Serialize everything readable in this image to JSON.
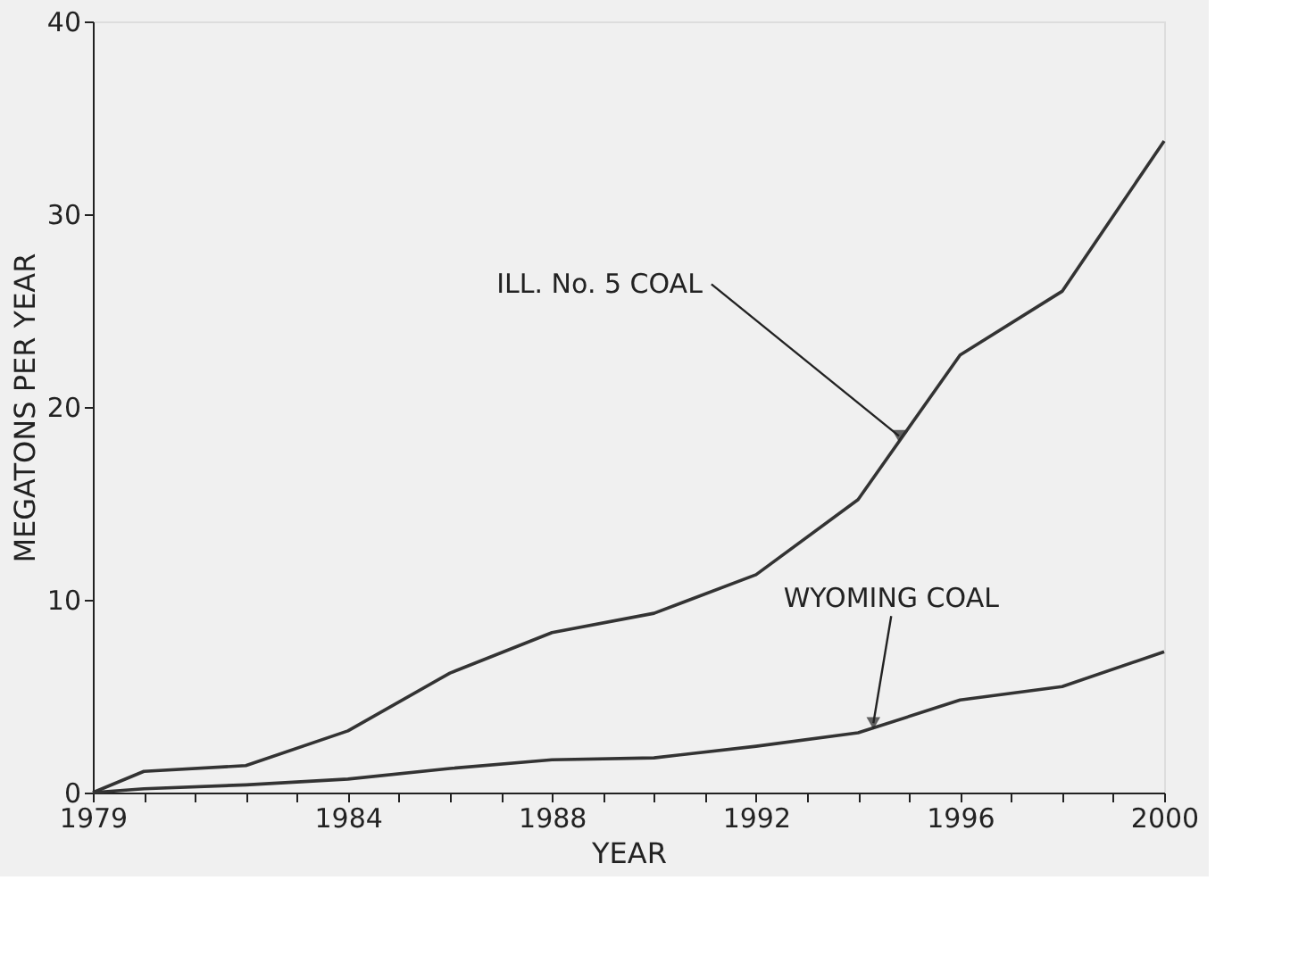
{
  "chart_data": {
    "type": "line",
    "xlabel": "YEAR",
    "ylabel": "MEGATONS PER YEAR",
    "x": [
      1979,
      1980,
      1982,
      1984,
      1986,
      1988,
      1990,
      1992,
      1994,
      1996,
      1998,
      2000
    ],
    "series": [
      {
        "color": "#333333",
        "values": [
          0,
          1.1,
          1.4,
          3.2,
          6.2,
          8.3,
          9.3,
          11.3,
          15.2,
          22.7,
          26,
          33.8
        ]
      },
      {
        "color": "#333333",
        "values": [
          0,
          0.2,
          0.4,
          0.7,
          1.25,
          1.7,
          1.8,
          2.4,
          3.1,
          4.8,
          5.5,
          7.3
        ]
      }
    ],
    "xlim": [
      1979,
      2000
    ],
    "xticks": [
      1979,
      {
        "value": 1980,
        "label": null
      },
      {
        "value": 1981,
        "label": null
      },
      {
        "value": 1982,
        "label": null
      },
      {
        "value": 1983,
        "label": null
      },
      1984,
      {
        "value": 1985,
        "label": null
      },
      {
        "value": 1986,
        "label": null
      },
      {
        "value": 1987,
        "label": null
      },
      1988,
      {
        "value": 1989,
        "label": null
      },
      {
        "value": 1990,
        "label": null
      },
      {
        "value": 1991,
        "label": null
      },
      1992,
      {
        "value": 1993,
        "label": null
      },
      {
        "value": 1994,
        "label": null
      },
      {
        "value": 1995,
        "label": null
      },
      1996,
      {
        "value": 1997,
        "label": null
      },
      {
        "value": 1998,
        "label": null
      },
      {
        "value": 1999,
        "label": null
      },
      2000
    ],
    "ylim": [
      0,
      40
    ],
    "yticks": [
      0,
      10,
      20,
      30,
      40
    ],
    "grid": false,
    "marker": "none",
    "line_style": "solid",
    "annotations": [
      {
        "text": "ILL. No. 5 COAL",
        "x": 1994.8,
        "y": 18.5
      },
      {
        "text": "WYOMING COAL",
        "x": 1994.3,
        "y": 3.6
      }
    ]
  }
}
